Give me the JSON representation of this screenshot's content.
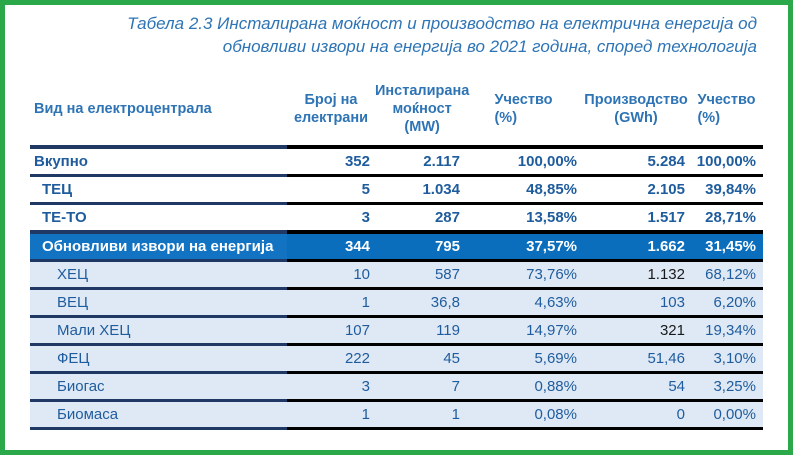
{
  "colors": {
    "frame_border_green": "#2BA84A",
    "title_blue": "#2E74B5",
    "header_text_blue": "#2E74B5",
    "body_text_blue": "#1F5C9D",
    "highlight_row_bg": "#0A6EBD",
    "highlight_label_bg": "#1273C3",
    "sub_row_bg": "#DEE9F5",
    "rule_navy": "#1F3864",
    "rule_black": "#000000",
    "black_value_text": "#1A1A1A"
  },
  "title": {
    "text": "Табела 2.3 Инсталирана моќност и производство на електрична енергија од\nобновливи извори на енергија во 2021 година, според технологија"
  },
  "table": {
    "columns": [
      {
        "label": "Вид на електроцентрала"
      },
      {
        "label": "Број на\nелектрани"
      },
      {
        "label": "Инсталирана\nмоќност\n(MW)"
      },
      {
        "label": "Учество\n(%)"
      },
      {
        "label": "Производство\n(GWh)"
      },
      {
        "label": "Учество\n(%)"
      }
    ],
    "rows": [
      {
        "label": "Вкупно",
        "indent": 0,
        "style": "total",
        "values": [
          "352",
          "2.117",
          "100,00%",
          "5.284",
          "100,00%"
        ]
      },
      {
        "label": "ТЕЦ",
        "indent": 1,
        "style": "bold",
        "values": [
          "5",
          "1.034",
          "48,85%",
          "2.105",
          "39,84%"
        ]
      },
      {
        "label": "ТЕ-ТО",
        "indent": 1,
        "style": "bold",
        "values": [
          "3",
          "287",
          "13,58%",
          "1.517",
          "28,71%"
        ]
      },
      {
        "label": "Обновливи извори на енергија",
        "indent": 1,
        "style": "highlight",
        "values": [
          "344",
          "795",
          "37,57%",
          "1.662",
          "31,45%"
        ]
      },
      {
        "label": "ХЕЦ",
        "indent": 2,
        "style": "sub",
        "values": [
          "10",
          "587",
          "73,76%",
          "1.132",
          "68,12%"
        ],
        "black_value_cols": [
          3
        ]
      },
      {
        "label": "ВЕЦ",
        "indent": 2,
        "style": "sub",
        "values": [
          "1",
          "36,8",
          "4,63%",
          "103",
          "6,20%"
        ]
      },
      {
        "label": "Мали ХЕЦ",
        "indent": 2,
        "style": "sub",
        "values": [
          "107",
          "119",
          "14,97%",
          "321",
          "19,34%"
        ],
        "black_value_cols": [
          3
        ]
      },
      {
        "label": "ФЕЦ",
        "indent": 2,
        "style": "sub",
        "values": [
          "222",
          "45",
          "5,69%",
          "51,46",
          "3,10%"
        ]
      },
      {
        "label": "Биогас",
        "indent": 2,
        "style": "sub",
        "values": [
          "3",
          "7",
          "0,88%",
          "54",
          "3,25%"
        ]
      },
      {
        "label": "Биомаса",
        "indent": 2,
        "style": "sub",
        "values": [
          "1",
          "1",
          "0,08%",
          "0",
          "0,00%"
        ]
      }
    ]
  }
}
